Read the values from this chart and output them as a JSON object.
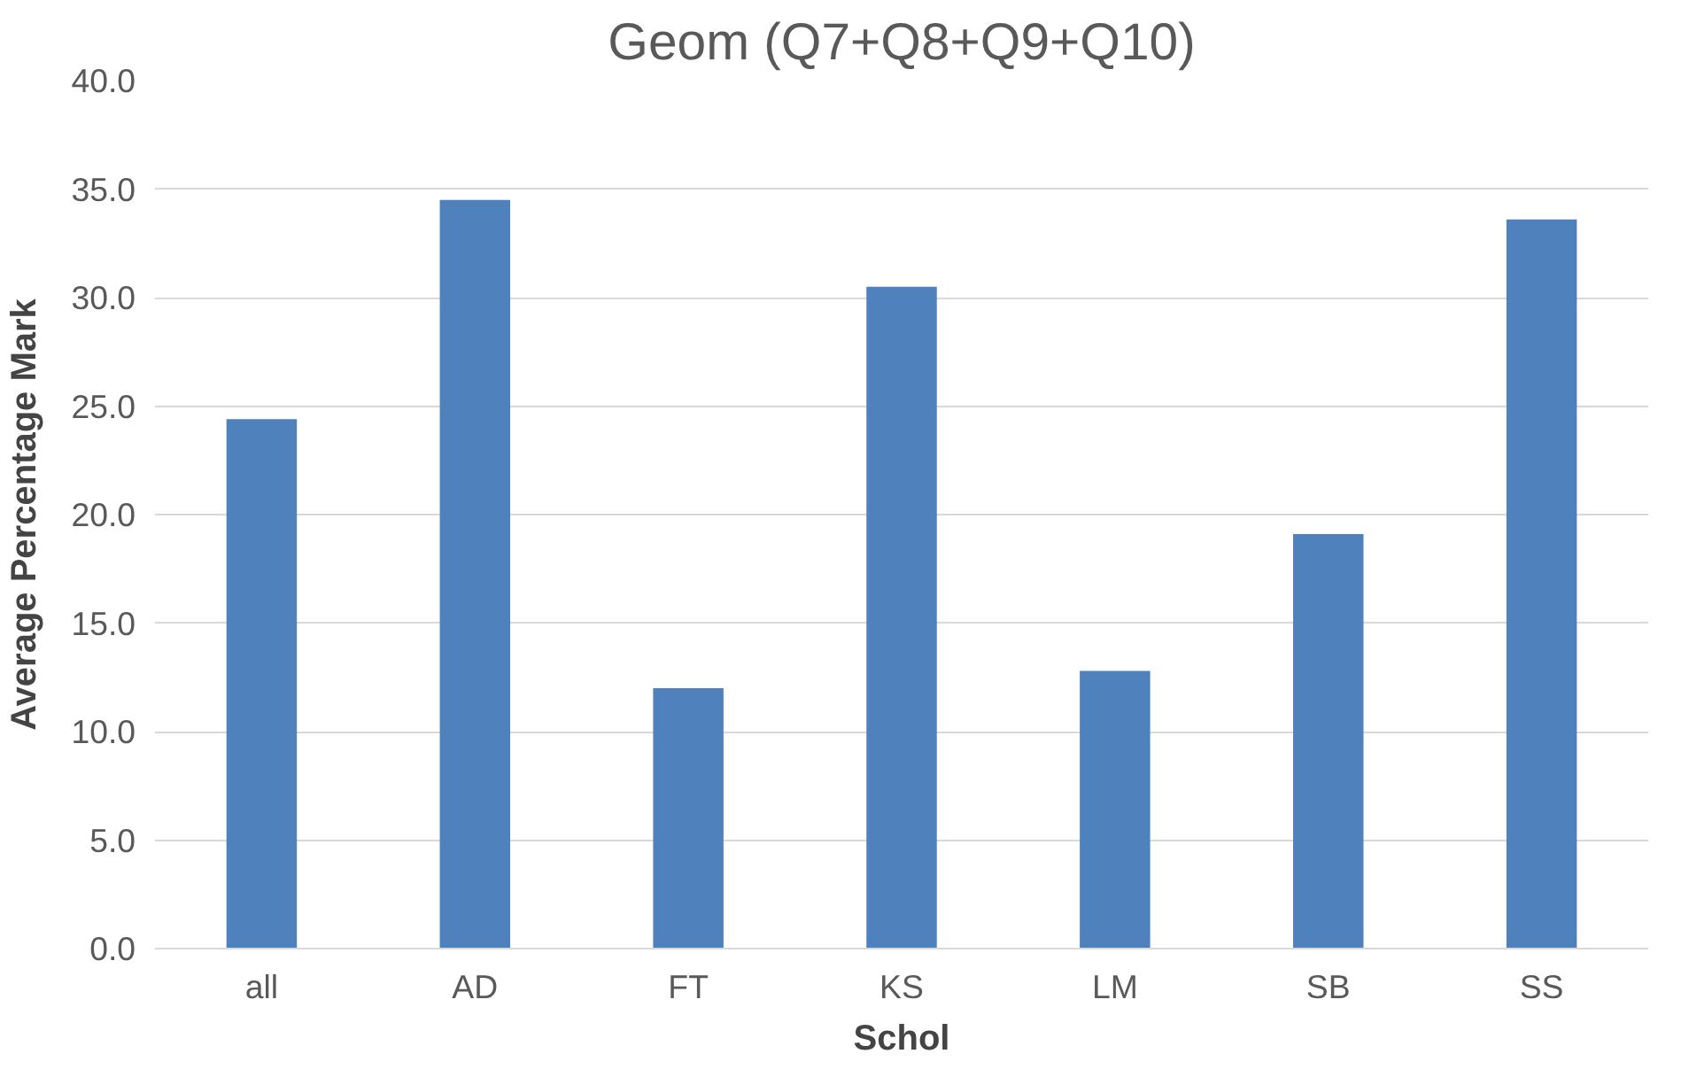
{
  "chart_data": {
    "type": "bar",
    "title": "Geom (Q7+Q8+Q9+Q10)",
    "xlabel": "Schol",
    "ylabel": "Average Percentage Mark",
    "categories": [
      "all",
      "AD",
      "FT",
      "KS",
      "LM",
      "SB",
      "SS"
    ],
    "values": [
      24.4,
      34.5,
      12.0,
      30.5,
      12.8,
      19.1,
      33.6
    ],
    "color": "#4f81bd",
    "ylim": [
      0,
      40
    ],
    "yticks": [
      {
        "value": 0,
        "label": "0.0"
      },
      {
        "value": 5,
        "label": "5.0"
      },
      {
        "value": 10,
        "label": "10.0"
      },
      {
        "value": 15,
        "label": "15.0"
      },
      {
        "value": 20,
        "label": "20.0"
      },
      {
        "value": 25,
        "label": "25.0"
      },
      {
        "value": 30,
        "label": "30.0"
      },
      {
        "value": 35,
        "label": "35.0"
      },
      {
        "value": 40,
        "label": "40.0"
      }
    ],
    "grid": "y"
  }
}
